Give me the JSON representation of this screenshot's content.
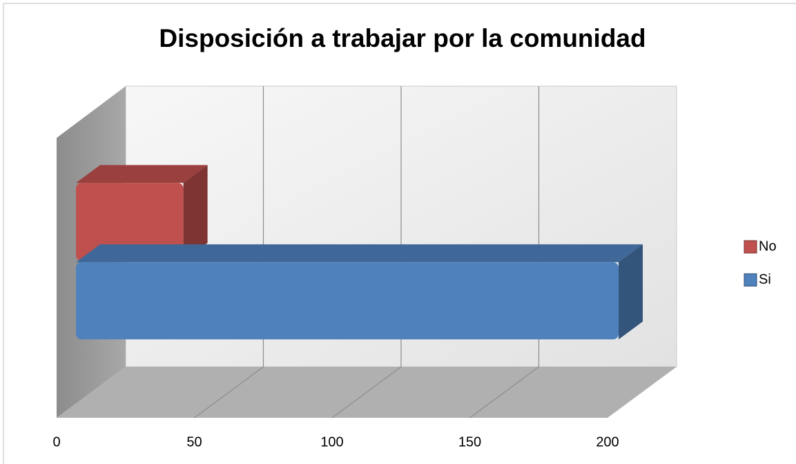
{
  "chart_data": {
    "type": "bar3d",
    "orientation": "horizontal",
    "title": "Disposición a trabajar por la comunidad",
    "categories": [
      null
    ],
    "series": [
      {
        "name": "No",
        "color": "#c0504d",
        "values": [
          39
        ]
      },
      {
        "name": "Si",
        "color": "#4f81bd",
        "values": [
          197
        ]
      }
    ],
    "xlim": [
      0,
      200
    ],
    "xticks": [
      0,
      50,
      100,
      150,
      200
    ],
    "grid": true,
    "legend": "right"
  }
}
